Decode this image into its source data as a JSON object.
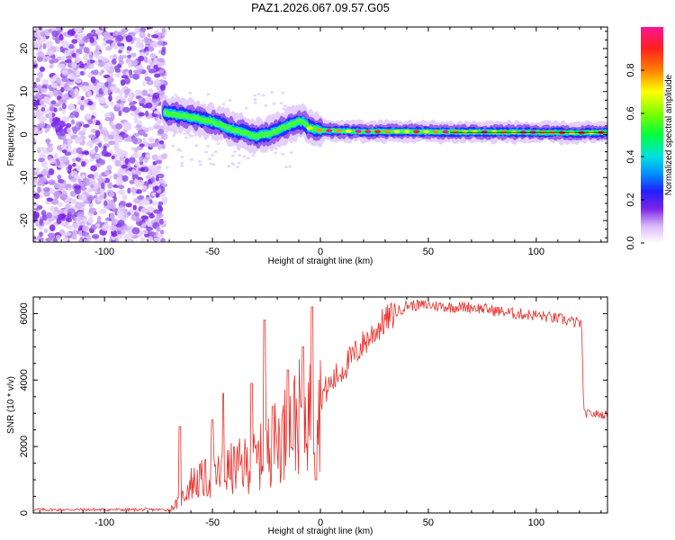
{
  "title": "PAZ1.2026.067.09.57.G05",
  "chart_data": [
    {
      "type": "heatmap",
      "title": "PAZ1.2026.067.09.57.G05",
      "xlabel": "Height of straight line (km)",
      "ylabel": "Frequency (Hz)",
      "xlim": [
        -133,
        133
      ],
      "ylim": [
        -25,
        25
      ],
      "xticks": [
        -100,
        -50,
        0,
        50,
        100
      ],
      "yticks": [
        -20,
        -10,
        0,
        10,
        20
      ],
      "noise_region_x": [
        -133,
        -72
      ],
      "ridge": {
        "x": [
          -72,
          -65,
          -60,
          -55,
          -50,
          -45,
          -40,
          -35,
          -30,
          -27,
          -24,
          -20,
          -15,
          -10,
          -8,
          -5,
          0,
          10,
          20,
          40,
          60,
          80,
          100,
          120,
          133
        ],
        "freq": [
          5.0,
          4.5,
          4.0,
          3.5,
          3.0,
          2.0,
          1.0,
          0.5,
          -0.5,
          0.0,
          0.0,
          1.0,
          2.0,
          3.0,
          3.0,
          1.5,
          1.0,
          0.8,
          0.7,
          0.7,
          0.6,
          0.6,
          0.5,
          0.4,
          0.5
        ]
      },
      "colorbar": {
        "label": "Normalized spectral amplitude",
        "range": [
          0.0,
          1.0
        ],
        "ticks": [
          "0.0",
          "0.2",
          "0.4",
          "0.6",
          "0.8"
        ]
      }
    },
    {
      "type": "line",
      "xlabel": "Height of straight line (km)",
      "ylabel": "SNR (10 * v/v)",
      "xlim": [
        -133,
        133
      ],
      "ylim": [
        0,
        6500
      ],
      "xticks": [
        -100,
        -50,
        0,
        50,
        100
      ],
      "yticks": [
        0,
        2000,
        4000,
        6000
      ],
      "color": "#e8302b",
      "envelope": {
        "x": [
          -133,
          -70,
          -65,
          -60,
          -50,
          -40,
          -30,
          -20,
          -10,
          -2,
          0,
          10,
          20,
          30,
          40,
          50,
          60,
          70,
          80,
          90,
          100,
          110,
          121,
          122,
          133
        ],
        "y": [
          100,
          100,
          400,
          1000,
          1200,
          1500,
          1700,
          2400,
          3200,
          3400,
          3500,
          4300,
          5100,
          5800,
          6250,
          6250,
          6200,
          6200,
          6100,
          6000,
          5950,
          5850,
          5700,
          3000,
          2950
        ]
      },
      "spikes": [
        {
          "x": -65,
          "y": 2600
        },
        {
          "x": -50,
          "y": 2800
        },
        {
          "x": -45,
          "y": 3600
        },
        {
          "x": -32,
          "y": 3900
        },
        {
          "x": -26,
          "y": 5800
        },
        {
          "x": -22,
          "y": 3200
        },
        {
          "x": -15,
          "y": 4300
        },
        {
          "x": -8,
          "y": 5000
        },
        {
          "x": -4,
          "y": 6200
        },
        {
          "x": -2,
          "y": 1000
        }
      ]
    }
  ]
}
